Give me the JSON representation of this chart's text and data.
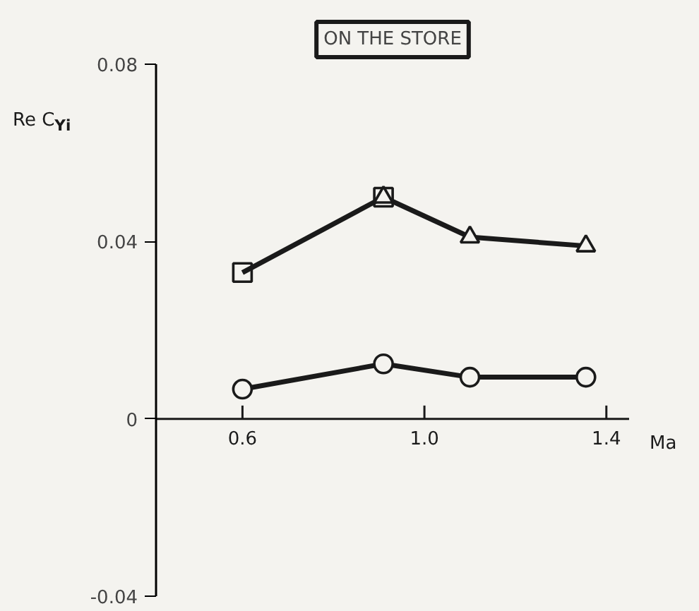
{
  "chart_data": {
    "type": "line",
    "title": "ON THE STORE",
    "xlabel": "Ma",
    "ylabel": "Re C$_{Yi}$",
    "x": [
      0.6,
      0.91,
      1.1,
      1.355
    ],
    "series": [
      {
        "color": "#1a1a1a",
        "values": [
          0.033,
          0.05,
          0.041,
          0.039
        ],
        "marker": "none"
      },
      {
        "color": "#1a1a1a",
        "values": [
          0.0067,
          0.0124,
          0.0094,
          0.0094
        ],
        "marker": "circle"
      },
      {
        "type": "scatter",
        "color": "#1a1a1a",
        "x": [
          0.91,
          1.1,
          1.355
        ],
        "values": [
          0.05,
          0.041,
          0.039
        ],
        "marker": "triangle"
      },
      {
        "type": "scatter",
        "color": "#1a1a1a",
        "x": [
          0.6,
          0.91
        ],
        "values": [
          0.033,
          0.05
        ],
        "marker": "square"
      }
    ],
    "xlim": [
      0.41,
      1.45
    ],
    "ylim": [
      -0.04,
      0.08
    ],
    "xticks": [
      0.6,
      {
        "value": 1.0,
        "label": "1.0"
      },
      1.4
    ],
    "yticks": [
      -0.04,
      0,
      0.04,
      0.08
    ],
    "grid": false,
    "line_style": "solid"
  }
}
